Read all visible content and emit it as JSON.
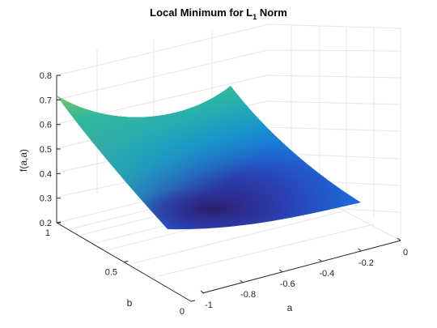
{
  "chart_data": {
    "type": "surface",
    "title": "Local Minimum for L",
    "title_subscript": "1",
    "title_suffix": " Norm",
    "xlabel": "a",
    "ylabel": "b",
    "zlabel": "f(a,a)",
    "xlim": [
      -1,
      0
    ],
    "ylim": [
      0,
      1
    ],
    "zlim": [
      0.2,
      0.8
    ],
    "x_ticks": [
      "-1",
      "-0.8",
      "-0.6",
      "-0.4",
      "-0.2",
      "0"
    ],
    "y_ticks": [
      "0",
      "0.5",
      "1"
    ],
    "z_ticks": [
      "0.2",
      "0.3",
      "0.4",
      "0.5",
      "0.6",
      "0.7",
      "0.8"
    ],
    "grid": true,
    "colormap": "parula",
    "surface_corners": [
      {
        "a": -1,
        "b": 0,
        "f": 0.28
      },
      {
        "a": 0,
        "b": 0,
        "f": 0.28
      },
      {
        "a": -1,
        "b": 1,
        "f": 0.72
      },
      {
        "a": 0,
        "b": 1,
        "f": 0.73
      }
    ],
    "minimum": {
      "a": -0.5,
      "b": 0.1,
      "f": 0.23
    }
  }
}
